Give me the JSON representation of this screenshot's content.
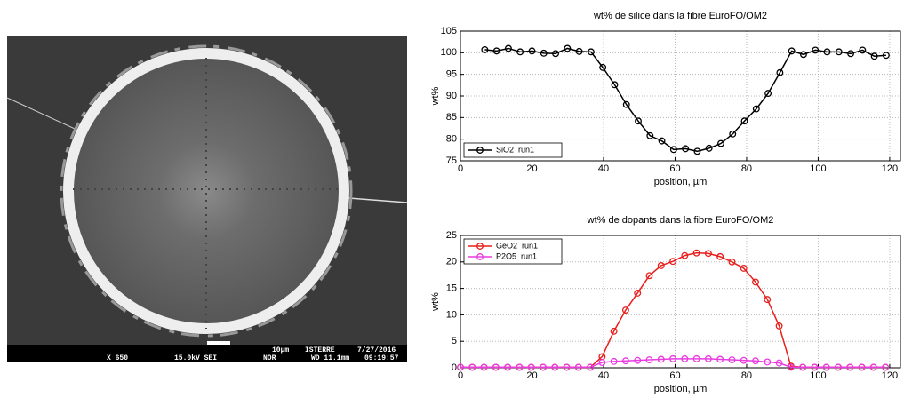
{
  "image_caption": {
    "magnification": "X 650",
    "voltage": "15.0kV SEI",
    "scale": "10µm",
    "lab": "ISTERRE",
    "date": "7/27/2016",
    "mode": "NOR",
    "wd": "WD 11.1mm",
    "time": "09:19:57"
  },
  "chart_data": [
    {
      "type": "line",
      "title": "wt% de silice dans la fibre EuroFO/OM2",
      "x_label": "position, µm",
      "y_label": "wt%",
      "xlim": [
        0,
        123
      ],
      "xticks": [
        0,
        20,
        40,
        60,
        80,
        100,
        120
      ],
      "ylim": [
        75,
        105
      ],
      "yticks": [
        75,
        80,
        85,
        90,
        95,
        100,
        105
      ],
      "grid": true,
      "legend": "lower-left",
      "x": [
        6.8,
        10.1,
        13.4,
        16.7,
        20,
        23.3,
        26.6,
        29.9,
        33.2,
        36.5,
        39.8,
        43.1,
        46.4,
        49.7,
        53,
        56.3,
        59.6,
        62.9,
        66.2,
        69.5,
        72.8,
        76.1,
        79.4,
        82.7,
        86,
        89.3,
        92.6,
        95.9,
        99.2,
        102.5,
        105.8,
        109.1,
        112.4,
        115.7,
        119
      ],
      "series": [
        {
          "name": "SiO2  run1",
          "color": "#000000",
          "values": [
            100.7,
            100.4,
            101,
            100.2,
            100.4,
            99.9,
            99.8,
            101,
            100.3,
            100.2,
            96.6,
            92.6,
            88,
            84.2,
            80.8,
            79.6,
            77.6,
            77.8,
            77.2,
            77.9,
            79,
            81.2,
            84.2,
            87,
            90.6,
            95.4,
            100.4,
            99.6,
            100.6,
            100.2,
            100.2,
            99.8,
            100.6,
            99.2,
            99.4
          ]
        }
      ]
    },
    {
      "type": "line",
      "title": "wt% de dopants dans la fibre EuroFO/OM2",
      "x_label": "position, µm",
      "y_label": "wt%",
      "xlim": [
        0,
        123
      ],
      "xticks": [
        0,
        20,
        40,
        60,
        80,
        100,
        120
      ],
      "ylim": [
        0,
        25
      ],
      "yticks": [
        0,
        5,
        10,
        15,
        20,
        25
      ],
      "grid": true,
      "legend": "upper-left",
      "x": [
        0,
        3.3,
        6.6,
        9.9,
        13.2,
        16.5,
        19.8,
        23.1,
        26.4,
        29.7,
        33,
        36.3,
        39.6,
        42.9,
        46.2,
        49.5,
        52.8,
        56.1,
        59.4,
        62.7,
        66,
        69.3,
        72.6,
        75.9,
        79.2,
        82.5,
        85.8,
        89.1,
        92.4,
        95.7,
        99,
        102.3,
        105.6,
        108.9,
        112.2,
        115.5,
        118.8
      ],
      "series": [
        {
          "name": "GeO2  run1",
          "color": "#e8201c",
          "values": [
            0.1,
            0.1,
            0.1,
            0.1,
            0.1,
            0.1,
            0.1,
            0.1,
            0.1,
            0.1,
            0.1,
            0.1,
            2.1,
            6.9,
            10.9,
            14.1,
            17.4,
            19.3,
            20.1,
            21.2,
            21.7,
            21.6,
            21,
            20,
            18.8,
            16.2,
            12.9,
            7.9,
            0.3,
            0.1,
            0.1,
            0.1,
            0.1,
            0.1,
            0.1,
            0.1,
            0.1
          ]
        },
        {
          "name": "P2O5  run1",
          "color": "#e83ce0",
          "values": [
            0.1,
            0.1,
            0.1,
            0.1,
            0.1,
            0.1,
            0.1,
            0.1,
            0.1,
            0.1,
            0.1,
            0.1,
            1.0,
            1.2,
            1.3,
            1.4,
            1.5,
            1.6,
            1.7,
            1.7,
            1.7,
            1.7,
            1.6,
            1.5,
            1.4,
            1.3,
            1.1,
            0.9,
            0.1,
            0.1,
            0.1,
            0.1,
            0.1,
            0.1,
            0.1,
            0.1,
            0.1
          ]
        }
      ]
    }
  ]
}
